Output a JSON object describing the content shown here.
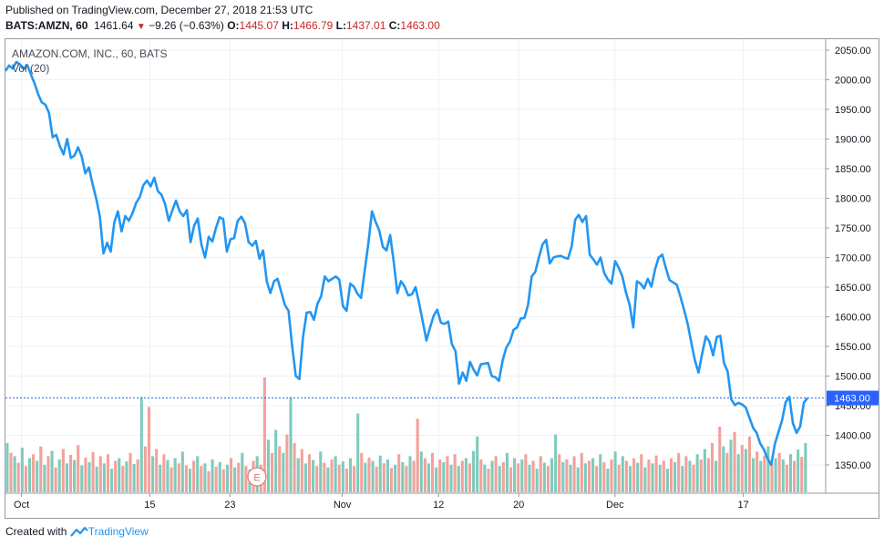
{
  "header": {
    "published": "Published on TradingView.com, December 27, 2018 21:53 UTC",
    "symbol": "BATS:AMZN, 60",
    "last": "1461.64",
    "change": "−9.26 (−0.63%)",
    "o_label": "O:",
    "o_value": "1445.07",
    "h_label": "H:",
    "h_value": "1466.79",
    "l_label": "L:",
    "l_value": "1437.01",
    "c_label": "C:",
    "c_value": "1463.00"
  },
  "footer": {
    "prefix": "Created with",
    "brand": "TradingView"
  },
  "colors": {
    "price_line": "#2196f3",
    "vol_up": "#7ecbbc",
    "vol_down": "#f2a29b",
    "current_price": "#2962ff",
    "earnings_marker": "#e57373"
  },
  "chart_data": {
    "type": "line",
    "title": "AMAZON.COM, INC., 60, BATS",
    "volume_label": "Vol (20)",
    "ylim": [
      1300,
      2060
    ],
    "y_ticks": [
      "2050.00",
      "2000.00",
      "1950.00",
      "1900.00",
      "1850.00",
      "1800.00",
      "1750.00",
      "1700.00",
      "1650.00",
      "1600.00",
      "1550.00",
      "1500.00",
      "1450.00",
      "1400.00",
      "1350.00"
    ],
    "x_tick_labels": [
      "Oct",
      "15",
      "23",
      "Nov",
      "12",
      "20",
      "Dec",
      "17"
    ],
    "current_price": "1463.00",
    "earnings_marker": "E",
    "series": [
      {
        "values": [
          2015,
          2024,
          2019,
          2030,
          2026,
          2018,
          2025,
          2009,
          1994,
          1976,
          1962,
          1958,
          1944,
          1903,
          1907,
          1888,
          1874,
          1900,
          1868,
          1872,
          1886,
          1871,
          1842,
          1852,
          1824,
          1800,
          1770,
          1707,
          1725,
          1710,
          1760,
          1778,
          1744,
          1770,
          1762,
          1775,
          1792,
          1802,
          1822,
          1830,
          1820,
          1835,
          1812,
          1806,
          1790,
          1762,
          1780,
          1796,
          1778,
          1770,
          1780,
          1726,
          1754,
          1766,
          1722,
          1700,
          1735,
          1727,
          1750,
          1768,
          1765,
          1710,
          1731,
          1733,
          1762,
          1769,
          1758,
          1726,
          1720,
          1728,
          1698,
          1712,
          1660,
          1640,
          1660,
          1664,
          1642,
          1620,
          1610,
          1550,
          1500,
          1495,
          1566,
          1607,
          1608,
          1595,
          1622,
          1635,
          1668,
          1660,
          1664,
          1668,
          1663,
          1618,
          1610,
          1656,
          1651,
          1639,
          1632,
          1678,
          1724,
          1778,
          1760,
          1746,
          1718,
          1712,
          1738,
          1692,
          1640,
          1660,
          1651,
          1636,
          1638,
          1650,
          1623,
          1592,
          1560,
          1582,
          1602,
          1612,
          1590,
          1588,
          1592,
          1554,
          1542,
          1487,
          1506,
          1492,
          1524,
          1511,
          1501,
          1520,
          1521,
          1522,
          1500,
          1498,
          1492,
          1526,
          1548,
          1558,
          1578,
          1582,
          1597,
          1598,
          1620,
          1668,
          1676,
          1700,
          1722,
          1730,
          1690,
          1700,
          1702,
          1703,
          1700,
          1698,
          1718,
          1764,
          1772,
          1760,
          1770,
          1705,
          1697,
          1688,
          1700,
          1674,
          1663,
          1656,
          1694,
          1683,
          1668,
          1641,
          1620,
          1582,
          1660,
          1656,
          1648,
          1664,
          1651,
          1680,
          1700,
          1705,
          1682,
          1662,
          1658,
          1654,
          1634,
          1612,
          1588,
          1556,
          1526,
          1506,
          1538,
          1567,
          1558,
          1535,
          1566,
          1568,
          1522,
          1508,
          1461,
          1451,
          1455,
          1452,
          1447,
          1430,
          1413,
          1404,
          1386,
          1376,
          1361,
          1350,
          1385,
          1405,
          1425,
          1456,
          1465,
          1420,
          1404,
          1415,
          1455,
          1463
        ]
      }
    ],
    "volume": [
      {
        "v": 75,
        "up": true
      },
      {
        "v": 60,
        "up": false
      },
      {
        "v": 55,
        "up": true
      },
      {
        "v": 45,
        "up": false
      },
      {
        "v": 68,
        "up": true
      },
      {
        "v": 40,
        "up": false
      },
      {
        "v": 52,
        "up": true
      },
      {
        "v": 58,
        "up": false
      },
      {
        "v": 48,
        "up": true
      },
      {
        "v": 70,
        "up": false
      },
      {
        "v": 42,
        "up": true
      },
      {
        "v": 55,
        "up": false
      },
      {
        "v": 63,
        "up": true
      },
      {
        "v": 38,
        "up": false
      },
      {
        "v": 50,
        "up": true
      },
      {
        "v": 66,
        "up": false
      },
      {
        "v": 44,
        "up": true
      },
      {
        "v": 57,
        "up": false
      },
      {
        "v": 49,
        "up": true
      },
      {
        "v": 72,
        "up": false
      },
      {
        "v": 41,
        "up": true
      },
      {
        "v": 53,
        "up": false
      },
      {
        "v": 46,
        "up": true
      },
      {
        "v": 61,
        "up": false
      },
      {
        "v": 39,
        "up": true
      },
      {
        "v": 55,
        "up": false
      },
      {
        "v": 44,
        "up": true
      },
      {
        "v": 58,
        "up": false
      },
      {
        "v": 36,
        "up": true
      },
      {
        "v": 48,
        "up": false
      },
      {
        "v": 52,
        "up": true
      },
      {
        "v": 40,
        "up": false
      },
      {
        "v": 47,
        "up": true
      },
      {
        "v": 60,
        "up": false
      },
      {
        "v": 43,
        "up": true
      },
      {
        "v": 50,
        "up": false
      },
      {
        "v": 145,
        "up": true
      },
      {
        "v": 70,
        "up": false
      },
      {
        "v": 130,
        "up": false
      },
      {
        "v": 55,
        "up": true
      },
      {
        "v": 66,
        "up": false
      },
      {
        "v": 42,
        "up": true
      },
      {
        "v": 58,
        "up": false
      },
      {
        "v": 49,
        "up": true
      },
      {
        "v": 38,
        "up": false
      },
      {
        "v": 52,
        "up": true
      },
      {
        "v": 44,
        "up": false
      },
      {
        "v": 62,
        "up": true
      },
      {
        "v": 41,
        "up": false
      },
      {
        "v": 36,
        "up": true
      },
      {
        "v": 48,
        "up": false
      },
      {
        "v": 55,
        "up": true
      },
      {
        "v": 40,
        "up": false
      },
      {
        "v": 44,
        "up": true
      },
      {
        "v": 32,
        "up": false
      },
      {
        "v": 50,
        "up": true
      },
      {
        "v": 39,
        "up": false
      },
      {
        "v": 46,
        "up": true
      },
      {
        "v": 35,
        "up": false
      },
      {
        "v": 42,
        "up": true
      },
      {
        "v": 52,
        "up": false
      },
      {
        "v": 38,
        "up": true
      },
      {
        "v": 45,
        "up": false
      },
      {
        "v": 60,
        "up": true
      },
      {
        "v": 40,
        "up": false
      },
      {
        "v": 35,
        "up": true
      },
      {
        "v": 48,
        "up": false
      },
      {
        "v": 55,
        "up": true
      },
      {
        "v": 42,
        "up": false
      },
      {
        "v": 175,
        "up": false
      },
      {
        "v": 80,
        "up": true
      },
      {
        "v": 60,
        "up": false
      },
      {
        "v": 95,
        "up": true
      },
      {
        "v": 70,
        "up": false
      },
      {
        "v": 60,
        "up": true
      },
      {
        "v": 88,
        "up": false
      },
      {
        "v": 145,
        "up": true
      },
      {
        "v": 75,
        "up": false
      },
      {
        "v": 52,
        "up": true
      },
      {
        "v": 66,
        "up": false
      },
      {
        "v": 44,
        "up": true
      },
      {
        "v": 58,
        "up": false
      },
      {
        "v": 49,
        "up": true
      },
      {
        "v": 40,
        "up": false
      },
      {
        "v": 62,
        "up": true
      },
      {
        "v": 45,
        "up": false
      },
      {
        "v": 38,
        "up": true
      },
      {
        "v": 50,
        "up": false
      },
      {
        "v": 55,
        "up": true
      },
      {
        "v": 42,
        "up": false
      },
      {
        "v": 47,
        "up": true
      },
      {
        "v": 36,
        "up": false
      },
      {
        "v": 52,
        "up": true
      },
      {
        "v": 40,
        "up": false
      },
      {
        "v": 120,
        "up": true
      },
      {
        "v": 60,
        "up": false
      },
      {
        "v": 45,
        "up": true
      },
      {
        "v": 53,
        "up": false
      },
      {
        "v": 48,
        "up": true
      },
      {
        "v": 39,
        "up": false
      },
      {
        "v": 56,
        "up": true
      },
      {
        "v": 44,
        "up": false
      },
      {
        "v": 50,
        "up": true
      },
      {
        "v": 37,
        "up": false
      },
      {
        "v": 42,
        "up": true
      },
      {
        "v": 58,
        "up": false
      },
      {
        "v": 46,
        "up": true
      },
      {
        "v": 40,
        "up": false
      },
      {
        "v": 55,
        "up": true
      },
      {
        "v": 48,
        "up": false
      },
      {
        "v": 112,
        "up": false
      },
      {
        "v": 62,
        "up": true
      },
      {
        "v": 52,
        "up": false
      },
      {
        "v": 44,
        "up": true
      },
      {
        "v": 60,
        "up": false
      },
      {
        "v": 38,
        "up": true
      },
      {
        "v": 50,
        "up": false
      },
      {
        "v": 46,
        "up": true
      },
      {
        "v": 55,
        "up": false
      },
      {
        "v": 42,
        "up": true
      },
      {
        "v": 58,
        "up": false
      },
      {
        "v": 40,
        "up": true
      },
      {
        "v": 48,
        "up": false
      },
      {
        "v": 52,
        "up": true
      },
      {
        "v": 44,
        "up": false
      },
      {
        "v": 63,
        "up": true
      },
      {
        "v": 85,
        "up": true
      },
      {
        "v": 50,
        "up": false
      },
      {
        "v": 42,
        "up": true
      },
      {
        "v": 36,
        "up": false
      },
      {
        "v": 48,
        "up": true
      },
      {
        "v": 55,
        "up": false
      },
      {
        "v": 40,
        "up": true
      },
      {
        "v": 46,
        "up": false
      },
      {
        "v": 60,
        "up": true
      },
      {
        "v": 38,
        "up": false
      },
      {
        "v": 52,
        "up": true
      },
      {
        "v": 44,
        "up": false
      },
      {
        "v": 50,
        "up": true
      },
      {
        "v": 58,
        "up": false
      },
      {
        "v": 42,
        "up": true
      },
      {
        "v": 48,
        "up": false
      },
      {
        "v": 36,
        "up": true
      },
      {
        "v": 55,
        "up": false
      },
      {
        "v": 45,
        "up": true
      },
      {
        "v": 40,
        "up": false
      },
      {
        "v": 52,
        "up": true
      },
      {
        "v": 88,
        "up": true
      },
      {
        "v": 58,
        "up": false
      },
      {
        "v": 46,
        "up": true
      },
      {
        "v": 50,
        "up": false
      },
      {
        "v": 42,
        "up": true
      },
      {
        "v": 55,
        "up": false
      },
      {
        "v": 38,
        "up": true
      },
      {
        "v": 60,
        "up": false
      },
      {
        "v": 44,
        "up": true
      },
      {
        "v": 48,
        "up": false
      },
      {
        "v": 52,
        "up": true
      },
      {
        "v": 40,
        "up": false
      },
      {
        "v": 58,
        "up": true
      },
      {
        "v": 46,
        "up": false
      },
      {
        "v": 36,
        "up": true
      },
      {
        "v": 50,
        "up": false
      },
      {
        "v": 62,
        "up": true
      },
      {
        "v": 42,
        "up": false
      },
      {
        "v": 55,
        "up": true
      },
      {
        "v": 48,
        "up": false
      },
      {
        "v": 40,
        "up": true
      },
      {
        "v": 52,
        "up": false
      },
      {
        "v": 45,
        "up": true
      },
      {
        "v": 58,
        "up": false
      },
      {
        "v": 38,
        "up": true
      },
      {
        "v": 50,
        "up": false
      },
      {
        "v": 44,
        "up": true
      },
      {
        "v": 56,
        "up": false
      },
      {
        "v": 42,
        "up": true
      },
      {
        "v": 48,
        "up": false
      },
      {
        "v": 36,
        "up": true
      },
      {
        "v": 52,
        "up": false
      },
      {
        "v": 46,
        "up": true
      },
      {
        "v": 60,
        "up": false
      },
      {
        "v": 40,
        "up": true
      },
      {
        "v": 55,
        "up": false
      },
      {
        "v": 48,
        "up": true
      },
      {
        "v": 42,
        "up": false
      },
      {
        "v": 58,
        "up": true
      },
      {
        "v": 50,
        "up": false
      },
      {
        "v": 66,
        "up": true
      },
      {
        "v": 52,
        "up": false
      },
      {
        "v": 75,
        "up": false
      },
      {
        "v": 48,
        "up": true
      },
      {
        "v": 100,
        "up": false
      },
      {
        "v": 70,
        "up": true
      },
      {
        "v": 60,
        "up": false
      },
      {
        "v": 80,
        "up": true
      },
      {
        "v": 92,
        "up": false
      },
      {
        "v": 58,
        "up": true
      },
      {
        "v": 72,
        "up": false
      },
      {
        "v": 66,
        "up": true
      },
      {
        "v": 85,
        "up": false
      },
      {
        "v": 52,
        "up": true
      },
      {
        "v": 62,
        "up": false
      },
      {
        "v": 48,
        "up": true
      },
      {
        "v": 56,
        "up": false
      },
      {
        "v": 70,
        "up": true
      },
      {
        "v": 44,
        "up": false
      },
      {
        "v": 52,
        "up": true
      },
      {
        "v": 60,
        "up": false
      },
      {
        "v": 50,
        "up": true
      },
      {
        "v": 42,
        "up": false
      },
      {
        "v": 58,
        "up": true
      },
      {
        "v": 48,
        "up": false
      },
      {
        "v": 65,
        "up": true
      },
      {
        "v": 54,
        "up": false
      },
      {
        "v": 75,
        "up": true
      }
    ]
  }
}
